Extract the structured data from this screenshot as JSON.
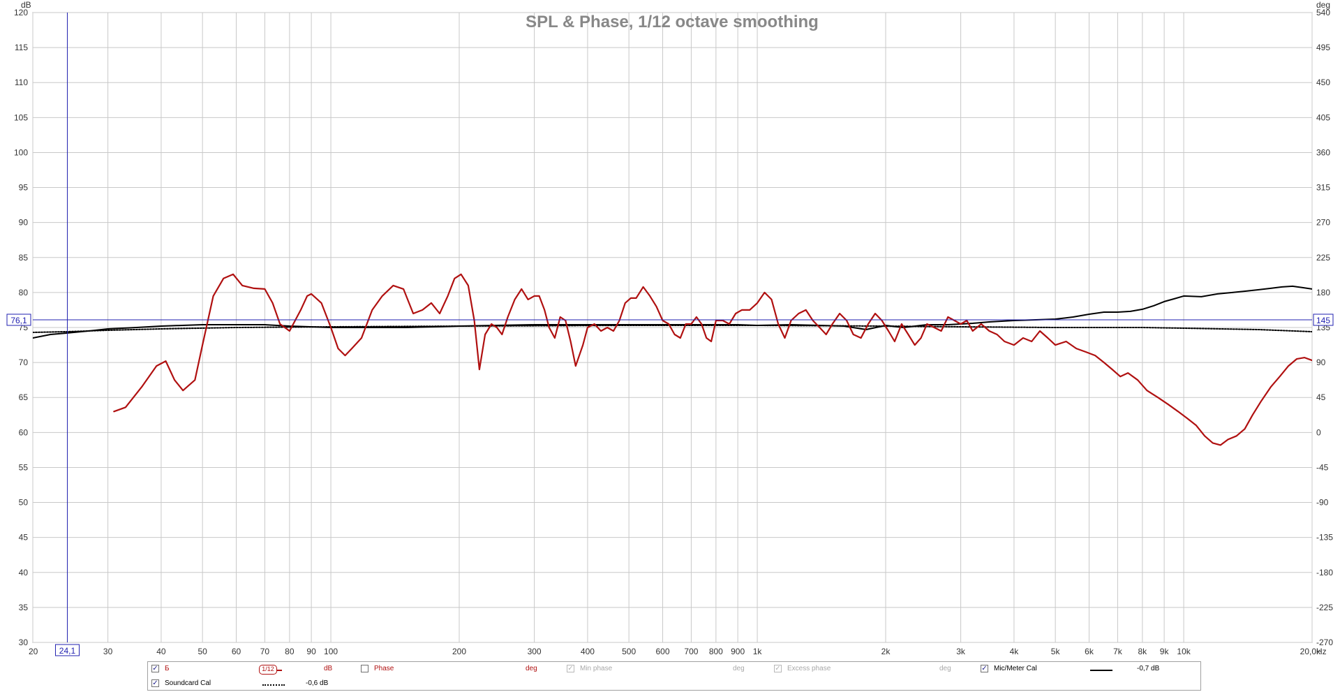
{
  "chart_data": {
    "type": "line",
    "title": "SPL & Phase, 1/12 octave smoothing",
    "y_unit_left": "dB",
    "y_unit_right": "deg",
    "x_unit": "Hz",
    "x_scale": "log",
    "xlim": [
      20,
      20000
    ],
    "ylim": [
      30,
      120
    ],
    "ylim_right": [
      -270,
      540
    ],
    "grid": true,
    "x_ticks": [
      20,
      30,
      40,
      50,
      60,
      70,
      80,
      90,
      100,
      200,
      300,
      400,
      500,
      600,
      700,
      800,
      900,
      1000,
      2000,
      3000,
      4000,
      5000,
      6000,
      7000,
      8000,
      9000,
      10000,
      20000
    ],
    "x_tick_labels": [
      "20",
      "30",
      "40",
      "50",
      "60",
      "70",
      "80",
      "90",
      "100",
      "200",
      "300",
      "400",
      "500",
      "600",
      "700",
      "800",
      "900",
      "1k",
      "2k",
      "3k",
      "4k",
      "5k",
      "6k",
      "7k",
      "8k",
      "9k",
      "10k",
      "20,0k"
    ],
    "y_ticks": [
      30,
      35,
      40,
      45,
      50,
      55,
      60,
      65,
      70,
      75,
      80,
      85,
      90,
      95,
      100,
      105,
      110,
      115,
      120
    ],
    "y_ticks_right": [
      -270,
      -225,
      -180,
      -135,
      -90,
      -45,
      0,
      45,
      90,
      135,
      180,
      225,
      270,
      315,
      360,
      405,
      450,
      495,
      540
    ],
    "cursor": {
      "x": 24.1,
      "x_label": "24,1",
      "y": 76.1,
      "y_label": "76,1",
      "y_right_label": "145"
    },
    "series": [
      {
        "name": "Б",
        "axis": "left",
        "color": "#b01010",
        "style": "solid",
        "x": [
          31,
          33,
          36,
          39,
          41,
          43,
          45,
          48,
          50,
          53,
          56,
          59,
          62,
          66,
          70,
          73,
          76,
          80,
          85,
          88,
          90,
          95,
          100,
          104,
          108,
          112,
          118,
          125,
          132,
          140,
          148,
          156,
          164,
          172,
          180,
          188,
          195,
          202,
          210,
          217,
          223,
          230,
          238,
          245,
          252,
          260,
          270,
          280,
          290,
          300,
          308,
          317,
          325,
          335,
          345,
          355,
          365,
          375,
          390,
          400,
          415,
          430,
          445,
          460,
          475,
          490,
          505,
          520,
          540,
          560,
          580,
          600,
          620,
          640,
          660,
          680,
          700,
          720,
          740,
          760,
          780,
          800,
          830,
          860,
          890,
          920,
          960,
          1000,
          1040,
          1080,
          1120,
          1160,
          1200,
          1250,
          1300,
          1350,
          1400,
          1450,
          1500,
          1560,
          1620,
          1680,
          1750,
          1820,
          1890,
          1960,
          2030,
          2100,
          2180,
          2260,
          2340,
          2420,
          2500,
          2600,
          2700,
          2800,
          2900,
          3000,
          3100,
          3200,
          3350,
          3500,
          3650,
          3800,
          4000,
          4200,
          4400,
          4600,
          4800,
          5000,
          5300,
          5600,
          5900,
          6200,
          6500,
          6800,
          7100,
          7400,
          7800,
          8200,
          8700,
          9200,
          9700,
          10200,
          10700,
          11200,
          11700,
          12200,
          12700,
          13300,
          13900,
          14500,
          15200,
          16000,
          16800,
          17600,
          18400,
          19200,
          20000
        ],
        "y": [
          63,
          63.6,
          66.5,
          69.5,
          70.2,
          67.5,
          66.0,
          67.5,
          72.5,
          79.5,
          82.0,
          82.6,
          81.0,
          80.6,
          80.5,
          78.5,
          75.5,
          74.5,
          77.5,
          79.5,
          79.8,
          78.5,
          75.0,
          72.0,
          71.0,
          72.0,
          73.5,
          77.5,
          79.5,
          81.0,
          80.5,
          77.0,
          77.5,
          78.5,
          77.0,
          79.5,
          82.0,
          82.6,
          81.0,
          76.0,
          69.0,
          74.0,
          75.5,
          75.0,
          74.0,
          76.5,
          79.0,
          80.5,
          79.0,
          79.5,
          79.5,
          77.5,
          75.0,
          73.5,
          76.5,
          76.0,
          73.0,
          69.5,
          72.5,
          75.0,
          75.5,
          74.5,
          75.0,
          74.5,
          76.0,
          78.5,
          79.2,
          79.2,
          80.8,
          79.5,
          78.0,
          76.0,
          75.5,
          74.0,
          73.5,
          75.5,
          75.5,
          76.5,
          75.5,
          73.5,
          73.0,
          76.0,
          76.0,
          75.5,
          77.0,
          77.5,
          77.5,
          78.5,
          80.0,
          79.0,
          75.5,
          73.5,
          76.0,
          77.0,
          77.5,
          76.0,
          75.0,
          74.0,
          75.5,
          77.0,
          76.0,
          74.0,
          73.5,
          75.5,
          77.0,
          76.0,
          74.5,
          73.0,
          75.5,
          74.0,
          72.5,
          73.5,
          75.5,
          75.0,
          74.5,
          76.5,
          76.0,
          75.5,
          76.0,
          74.5,
          75.5,
          74.5,
          74.0,
          73.0,
          72.5,
          73.5,
          73.0,
          74.5,
          73.5,
          72.5,
          73.0,
          72.0,
          71.5,
          71.0,
          70.0,
          69.0,
          68.0,
          68.5,
          67.5,
          66.0,
          65.0,
          64.0,
          63.0,
          62.0,
          61.0,
          59.5,
          58.5,
          58.2,
          59.0,
          59.5,
          60.5,
          62.5,
          64.5,
          66.5,
          68.0,
          69.5,
          70.5,
          70.7,
          70.3
        ]
      },
      {
        "name": "Mic/Meter Cal",
        "axis": "left",
        "color": "#000000",
        "style": "solid",
        "offset_label": "-0,7 dB",
        "x": [
          20,
          22,
          24,
          27,
          30,
          35,
          40,
          50,
          60,
          70,
          80,
          100,
          150,
          200,
          300,
          400,
          500,
          700,
          900,
          1000,
          1200,
          1400,
          1600,
          1800,
          2000,
          2200,
          2500,
          2800,
          3000,
          3200,
          3500,
          4000,
          4500,
          5000,
          5500,
          6000,
          6500,
          7000,
          7500,
          8000,
          8500,
          9000,
          9500,
          10000,
          11000,
          12000,
          13000,
          14000,
          15000,
          16000,
          17000,
          18000,
          19000,
          20000
        ],
        "y": [
          73.5,
          74.0,
          74.2,
          74.5,
          74.8,
          75.0,
          75.2,
          75.4,
          75.4,
          75.4,
          75.2,
          75.0,
          75.0,
          75.2,
          75.4,
          75.4,
          75.4,
          75.4,
          75.4,
          75.3,
          75.4,
          75.3,
          75.2,
          74.7,
          75.3,
          75.0,
          75.4,
          75.4,
          75.5,
          75.6,
          75.8,
          76.0,
          76.1,
          76.2,
          76.5,
          76.9,
          77.2,
          77.2,
          77.3,
          77.6,
          78.1,
          78.7,
          79.1,
          79.5,
          79.4,
          79.8,
          80.0,
          80.2,
          80.4,
          80.6,
          80.8,
          80.9,
          80.7,
          80.5
        ]
      },
      {
        "name": "Soundcard Cal",
        "axis": "left",
        "color": "#000000",
        "style": "dotted",
        "offset_label": "-0,6 dB",
        "x": [
          20,
          24,
          30,
          40,
          60,
          100,
          200,
          500,
          1000,
          2000,
          3000,
          5000,
          8000,
          10000,
          15000,
          20000
        ],
        "y": [
          74.3,
          74.4,
          74.6,
          74.8,
          75.0,
          75.1,
          75.2,
          75.3,
          75.3,
          75.2,
          75.1,
          75.0,
          75.0,
          74.9,
          74.7,
          74.4
        ]
      }
    ]
  },
  "legend": {
    "row1": [
      {
        "name": "Б",
        "checked": true,
        "smoothing": "1/12",
        "unit": "dB"
      },
      {
        "name": "Phase",
        "checked": false,
        "unit": "deg"
      },
      {
        "name": "Min phase",
        "checked": true,
        "disabled": true,
        "unit": "deg"
      },
      {
        "name": "Excess phase",
        "checked": true,
        "disabled": true,
        "unit": "deg"
      },
      {
        "name": "Mic/Meter Cal",
        "checked": true,
        "value": "-0,7 dB"
      }
    ],
    "row2": [
      {
        "name": "Soundcard Cal",
        "checked": true,
        "value": "-0,6 dB"
      }
    ]
  },
  "colors": {
    "grid": "#c8c8c8",
    "cursor": "#2020b0",
    "axis": "#808080",
    "title": "#888888",
    "primary": "#b01010"
  },
  "check_mark": "✓"
}
